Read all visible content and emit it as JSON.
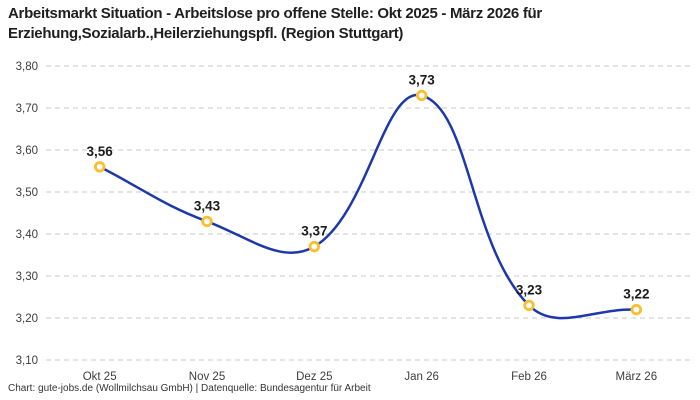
{
  "header": {
    "title_line1": "Arbeitsmarkt Situation - Arbeitslose pro offene Stelle: Okt 2025 - März 2026 für",
    "title_line2": "Erziehung,Sozialarb.,Heilerziehungspfl. (Region Stuttgart)"
  },
  "footer": {
    "credit": "Chart: gute-jobs.de (Wollmilchsau GmbH) | Datenquelle: Bundesagentur für Arbeit"
  },
  "chart_data": {
    "type": "line",
    "title": "Arbeitsmarkt Situation - Arbeitslose pro offene Stelle: Okt 2025 - März 2026 für Erziehung,Sozialarb.,Heilerziehungspfl. (Region Stuttgart)",
    "categories": [
      "Okt 25",
      "Nov 25",
      "Dez 25",
      "Jan 26",
      "Feb 26",
      "März 26"
    ],
    "values": [
      3.56,
      3.43,
      3.37,
      3.73,
      3.23,
      3.22
    ],
    "value_labels": [
      "3,56",
      "3,43",
      "3,37",
      "3,73",
      "3,23",
      "3,22"
    ],
    "ylim": [
      3.1,
      3.8
    ],
    "yticks": [
      3.1,
      3.2,
      3.3,
      3.4,
      3.5,
      3.6,
      3.7,
      3.8
    ],
    "ytick_labels": [
      "3,10",
      "3,20",
      "3,30",
      "3,40",
      "3,50",
      "3,60",
      "3,70",
      "3,80"
    ],
    "xlabel": "",
    "ylabel": "",
    "grid": "horizontal-dashed",
    "legend": "none",
    "smooth": true,
    "colors": {
      "line": "#1d38ab",
      "marker_ring": "#f9bf2e",
      "marker_fill": "#ffffff",
      "gridline": "#c9c9c9",
      "value_label": "#1b1b1b",
      "tick_text": "#3d3d3d",
      "title_text": "#1f1f1f"
    }
  }
}
